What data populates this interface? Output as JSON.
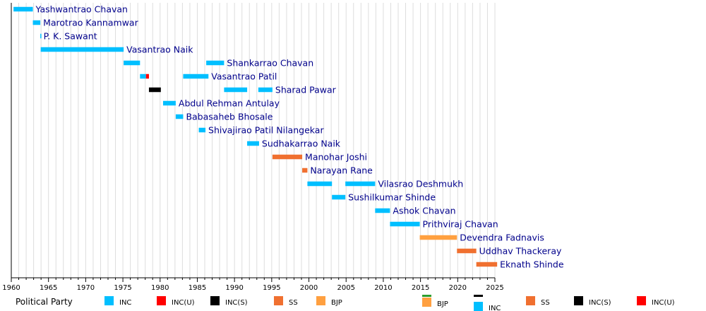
{
  "chart_data": {
    "type": "timeline",
    "x_range": [
      1960,
      2025
    ],
    "tick_step": 5,
    "grid": true,
    "party_colors": {
      "INC": "#00bfff",
      "INC(U)": "#ff0000",
      "INC(S)": "#000000",
      "SS": "#f07030",
      "BJP": "#ffa040"
    },
    "rows": [
      {
        "label": "Yashwantrao Chavan",
        "terms": [
          {
            "start": 1960.3,
            "end": 1962.9,
            "party": "INC"
          }
        ]
      },
      {
        "label": "Marotrao Kannamwar",
        "terms": [
          {
            "start": 1962.9,
            "end": 1963.9,
            "party": "INC"
          }
        ]
      },
      {
        "label": "P. K. Sawant",
        "terms": [
          {
            "start": 1963.9,
            "end": 1963.95,
            "party": "INC"
          }
        ]
      },
      {
        "label": "Vasantrao Naik",
        "terms": [
          {
            "start": 1963.95,
            "end": 1975.1,
            "party": "INC"
          }
        ]
      },
      {
        "label": "Shankarrao Chavan",
        "terms": [
          {
            "start": 1975.1,
            "end": 1977.3,
            "party": "INC"
          },
          {
            "start": 1986.2,
            "end": 1988.6,
            "party": "INC"
          }
        ]
      },
      {
        "label": "Vasantrao Patil",
        "terms": [
          {
            "start": 1977.3,
            "end": 1978.1,
            "party": "INC"
          },
          {
            "start": 1978.1,
            "end": 1978.5,
            "party": "INC(U)"
          },
          {
            "start": 1983.1,
            "end": 1986.5,
            "party": "INC"
          }
        ]
      },
      {
        "label": "Sharad Pawar",
        "terms": [
          {
            "start": 1978.5,
            "end": 1980.1,
            "party": "INC(S)"
          },
          {
            "start": 1988.6,
            "end": 1991.7,
            "party": "INC"
          },
          {
            "start": 1993.2,
            "end": 1995.1,
            "party": "INC"
          }
        ]
      },
      {
        "label": "Abdul Rehman Antulay",
        "terms": [
          {
            "start": 1980.4,
            "end": 1982.1,
            "party": "INC"
          }
        ]
      },
      {
        "label": "Babasaheb Bhosale",
        "terms": [
          {
            "start": 1982.1,
            "end": 1983.1,
            "party": "INC"
          }
        ]
      },
      {
        "label": "Shivajirao Patil Nilangekar",
        "terms": [
          {
            "start": 1985.2,
            "end": 1986.1,
            "party": "INC"
          }
        ]
      },
      {
        "label": "Sudhakarrao Naik",
        "terms": [
          {
            "start": 1991.7,
            "end": 1993.3,
            "party": "INC"
          }
        ]
      },
      {
        "label": "Manohar Joshi",
        "terms": [
          {
            "start": 1995.1,
            "end": 1999.1,
            "party": "SS"
          }
        ]
      },
      {
        "label": "Narayan Rane",
        "terms": [
          {
            "start": 1999.1,
            "end": 1999.8,
            "party": "SS"
          }
        ]
      },
      {
        "label": "Vilasrao Deshmukh",
        "terms": [
          {
            "start": 1999.8,
            "end": 2003.1,
            "party": "INC"
          },
          {
            "start": 2004.9,
            "end": 2008.9,
            "party": "INC"
          }
        ]
      },
      {
        "label": "Sushilkumar Shinde",
        "terms": [
          {
            "start": 2003.1,
            "end": 2004.9,
            "party": "INC"
          }
        ]
      },
      {
        "label": "Ashok Chavan",
        "terms": [
          {
            "start": 2008.9,
            "end": 2010.9,
            "party": "INC"
          }
        ]
      },
      {
        "label": "Prithviraj Chavan",
        "terms": [
          {
            "start": 2010.9,
            "end": 2014.9,
            "party": "INC"
          }
        ]
      },
      {
        "label": "Devendra Fadnavis",
        "terms": [
          {
            "start": 2014.9,
            "end": 2019.9,
            "party": "BJP"
          }
        ]
      },
      {
        "label": "Uddhav Thackeray",
        "terms": [
          {
            "start": 2019.9,
            "end": 2022.5,
            "party": "SS"
          }
        ]
      },
      {
        "label": "Eknath Shinde",
        "terms": [
          {
            "start": 2022.5,
            "end": 2025.3,
            "party": "SS"
          }
        ]
      }
    ],
    "legend": {
      "title": "Political Party",
      "entries": [
        {
          "label": "INC",
          "party": "INC"
        },
        {
          "label": "INC(U)",
          "party": "INC(U)"
        },
        {
          "label": "INC(S)",
          "party": "INC(S)"
        },
        {
          "label": "SS",
          "party": "SS"
        },
        {
          "label": "BJP",
          "party": "BJP"
        }
      ],
      "extra_entries": [
        {
          "label": "BJP",
          "party": "BJP",
          "style": "stacked-top-green"
        },
        {
          "label": "INC",
          "party": "INC",
          "style": "stacked-top-black"
        },
        {
          "label": "SS",
          "party": "SS"
        },
        {
          "label": "INC(S)",
          "party": "INC(S)"
        },
        {
          "label": "INC(U)",
          "party": "INC(U)"
        }
      ],
      "stack_accent_colors": {
        "green": "#2e9e2e",
        "black": "#000000"
      }
    }
  }
}
